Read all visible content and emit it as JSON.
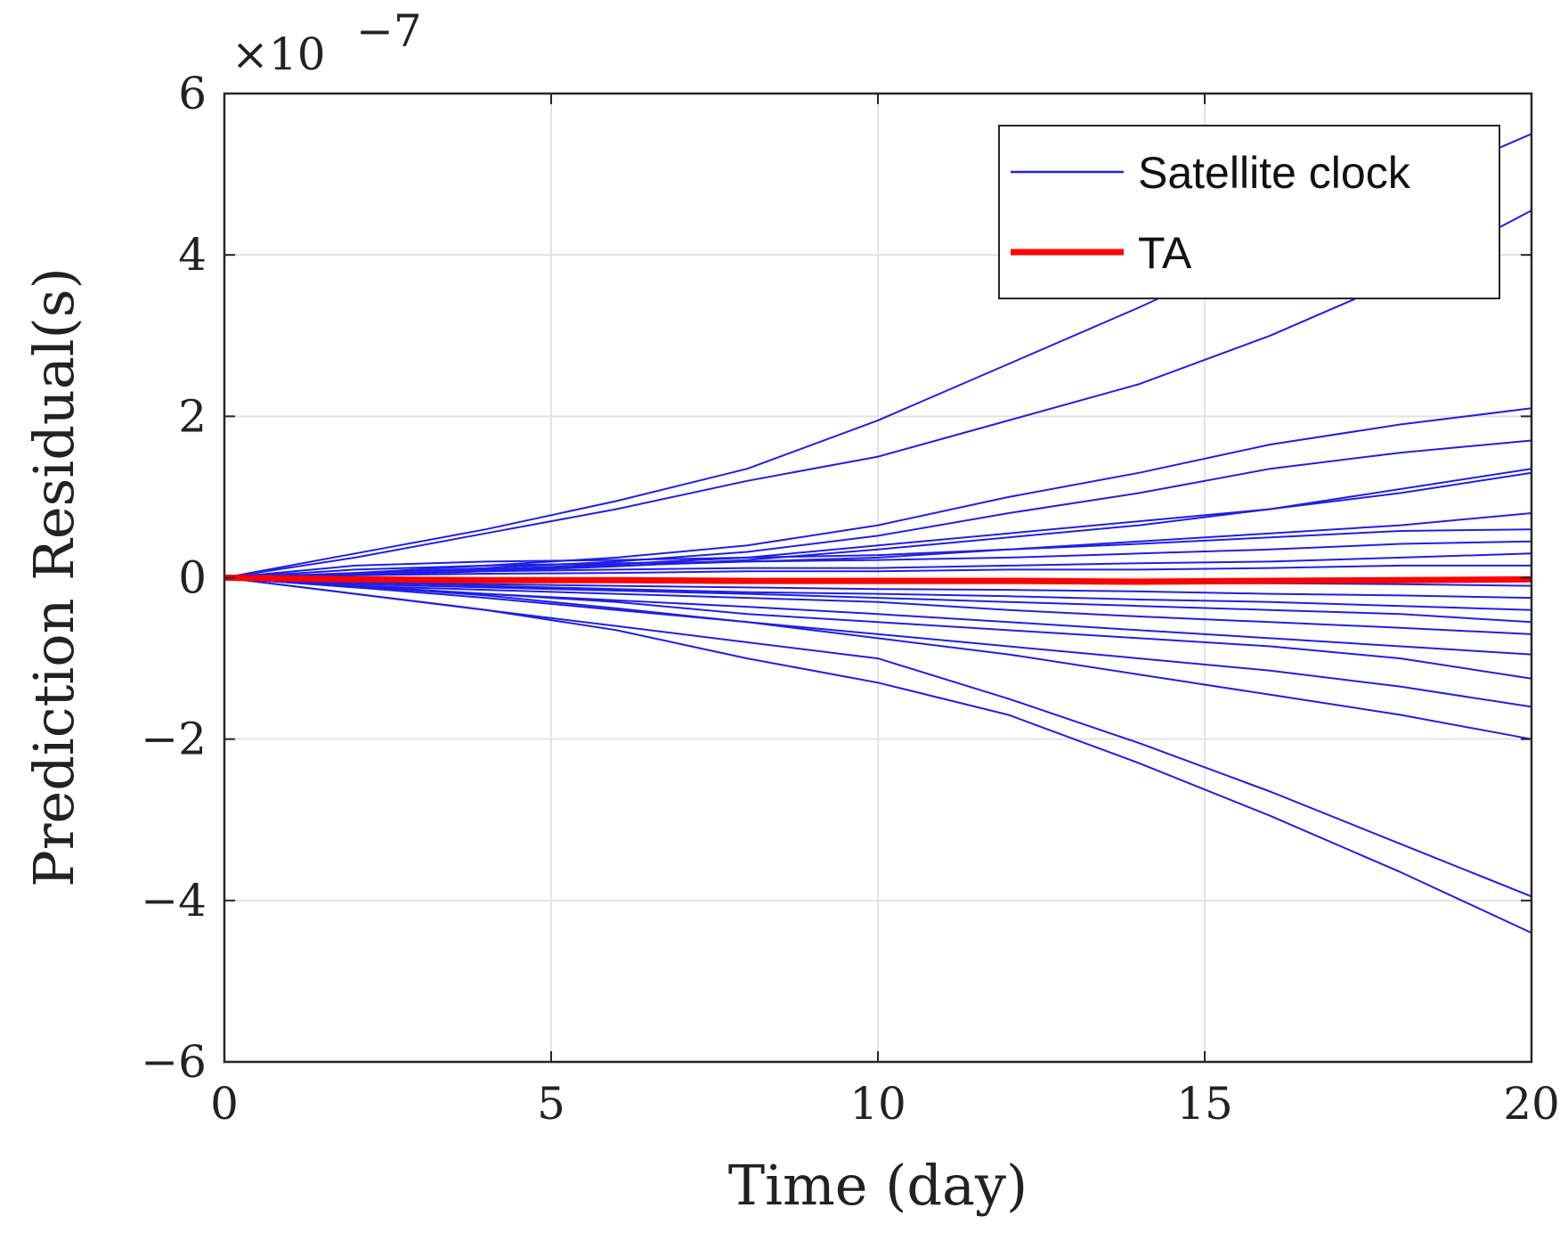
{
  "chart_data": {
    "type": "line",
    "title": "",
    "xlabel": "Time (day)",
    "ylabel": "Prediction Residual(s)",
    "xlim": [
      0,
      20
    ],
    "ylim": [
      -6,
      6
    ],
    "xticks": [
      0,
      5,
      10,
      15,
      20
    ],
    "yticks": [
      -6,
      -4,
      -2,
      0,
      2,
      4,
      6
    ],
    "ytick_labels": [
      "−6",
      "−4",
      "−2",
      "0",
      "2",
      "4",
      "6"
    ],
    "y_exponent_base": "×10",
    "y_exponent_power": "−7",
    "grid": true,
    "legend": {
      "placement": "top-right",
      "entries": [
        {
          "label": "Satellite clock",
          "color": "#1f1fe6"
        },
        {
          "label": "TA",
          "color": "#ff0000"
        }
      ]
    },
    "x": [
      0,
      2,
      4,
      6,
      8,
      10,
      12,
      14,
      16,
      18,
      20
    ],
    "series": [
      {
        "name": "Satellite clock",
        "color": "#1f1fe6",
        "values": [
          0,
          0.3,
          0.6,
          0.95,
          1.35,
          1.95,
          2.65,
          3.35,
          4.1,
          4.8,
          5.5
        ]
      },
      {
        "name": "Satellite clock",
        "color": "#1f1fe6",
        "values": [
          0,
          0.25,
          0.55,
          0.85,
          1.2,
          1.5,
          1.95,
          2.4,
          3.0,
          3.7,
          4.55
        ]
      },
      {
        "name": "Satellite clock",
        "color": "#1f1fe6",
        "values": [
          0,
          0.06,
          0.15,
          0.25,
          0.4,
          0.65,
          1.0,
          1.3,
          1.65,
          1.9,
          2.1
        ]
      },
      {
        "name": "Satellite clock",
        "color": "#1f1fe6",
        "values": [
          0,
          0.05,
          0.12,
          0.2,
          0.32,
          0.52,
          0.8,
          1.05,
          1.35,
          1.55,
          1.7
        ]
      },
      {
        "name": "Satellite clock",
        "color": "#1f1fe6",
        "values": [
          0,
          0.04,
          0.1,
          0.17,
          0.25,
          0.4,
          0.55,
          0.7,
          0.85,
          1.1,
          1.35
        ]
      },
      {
        "name": "Satellite clock",
        "color": "#1f1fe6",
        "values": [
          0,
          0.03,
          0.08,
          0.14,
          0.22,
          0.35,
          0.5,
          0.65,
          0.85,
          1.05,
          1.3
        ]
      },
      {
        "name": "Satellite clock",
        "color": "#1f1fe6",
        "values": [
          0,
          0.05,
          0.1,
          0.15,
          0.2,
          0.25,
          0.35,
          0.45,
          0.55,
          0.65,
          0.8
        ]
      },
      {
        "name": "Satellite clock",
        "color": "#1f1fe6",
        "values": [
          0,
          0.15,
          0.2,
          0.22,
          0.25,
          0.28,
          0.35,
          0.42,
          0.5,
          0.58,
          0.6
        ]
      },
      {
        "name": "Satellite clock",
        "color": "#1f1fe6",
        "values": [
          0,
          0.1,
          0.15,
          0.18,
          0.2,
          0.22,
          0.25,
          0.3,
          0.35,
          0.42,
          0.45
        ]
      },
      {
        "name": "Satellite clock",
        "color": "#1f1fe6",
        "values": [
          0,
          0.05,
          0.08,
          0.1,
          0.12,
          0.12,
          0.15,
          0.18,
          0.2,
          0.25,
          0.3
        ]
      },
      {
        "name": "Satellite clock",
        "color": "#1f1fe6",
        "values": [
          0,
          0.03,
          0.05,
          0.06,
          0.08,
          0.08,
          0.1,
          0.1,
          0.12,
          0.15,
          0.15
        ]
      },
      {
        "name": "Satellite clock",
        "color": "#1f1fe6",
        "values": [
          0,
          -0.02,
          -0.03,
          -0.03,
          -0.04,
          -0.05,
          -0.05,
          -0.06,
          -0.07,
          -0.08,
          -0.1
        ]
      },
      {
        "name": "Satellite clock",
        "color": "#1f1fe6",
        "values": [
          0,
          -0.05,
          -0.08,
          -0.1,
          -0.12,
          -0.14,
          -0.15,
          -0.17,
          -0.2,
          -0.22,
          -0.25
        ]
      },
      {
        "name": "Satellite clock",
        "color": "#1f1fe6",
        "values": [
          0,
          -0.06,
          -0.1,
          -0.14,
          -0.18,
          -0.2,
          -0.23,
          -0.27,
          -0.3,
          -0.35,
          -0.4
        ]
      },
      {
        "name": "Satellite clock",
        "color": "#1f1fe6",
        "values": [
          0,
          -0.08,
          -0.12,
          -0.16,
          -0.2,
          -0.25,
          -0.3,
          -0.35,
          -0.4,
          -0.45,
          -0.55
        ]
      },
      {
        "name": "Satellite clock",
        "color": "#1f1fe6",
        "values": [
          0,
          -0.1,
          -0.15,
          -0.2,
          -0.25,
          -0.3,
          -0.4,
          -0.48,
          -0.55,
          -0.62,
          -0.7
        ]
      },
      {
        "name": "Satellite clock",
        "color": "#1f1fe6",
        "values": [
          0,
          -0.12,
          -0.2,
          -0.28,
          -0.36,
          -0.45,
          -0.55,
          -0.65,
          -0.75,
          -0.85,
          -0.95
        ]
      },
      {
        "name": "Satellite clock",
        "color": "#1f1fe6",
        "values": [
          0,
          -0.1,
          -0.2,
          -0.3,
          -0.45,
          -0.55,
          -0.65,
          -0.75,
          -0.85,
          -1.0,
          -1.25
        ]
      },
      {
        "name": "Satellite clock",
        "color": "#1f1fe6",
        "values": [
          0,
          -0.12,
          -0.25,
          -0.4,
          -0.55,
          -0.7,
          -0.85,
          -1.0,
          -1.15,
          -1.35,
          -1.6
        ]
      },
      {
        "name": "Satellite clock",
        "color": "#1f1fe6",
        "values": [
          0,
          -0.1,
          -0.22,
          -0.38,
          -0.55,
          -0.75,
          -0.95,
          -1.2,
          -1.45,
          -1.7,
          -2.0
        ]
      },
      {
        "name": "Satellite clock",
        "color": "#1f1fe6",
        "values": [
          0,
          -0.2,
          -0.4,
          -0.6,
          -0.8,
          -1.0,
          -1.5,
          -2.05,
          -2.65,
          -3.3,
          -3.95
        ]
      },
      {
        "name": "Satellite clock",
        "color": "#1f1fe6",
        "values": [
          0,
          -0.2,
          -0.4,
          -0.65,
          -1.0,
          -1.3,
          -1.7,
          -2.3,
          -2.95,
          -3.65,
          -4.4
        ]
      },
      {
        "name": "TA",
        "color": "#ff0000",
        "values": [
          0,
          -0.02,
          -0.03,
          -0.03,
          -0.04,
          -0.04,
          -0.04,
          -0.05,
          -0.04,
          -0.03,
          -0.02
        ]
      }
    ]
  }
}
